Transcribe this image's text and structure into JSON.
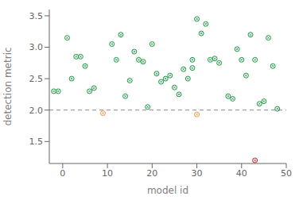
{
  "chart_data": {
    "type": "scatter",
    "title": "",
    "xlabel": "model id",
    "ylabel": "detection metric",
    "xlim": [
      -3,
      50
    ],
    "ylim": [
      1.15,
      3.6
    ],
    "xticks": [
      0,
      10,
      20,
      30,
      40,
      50
    ],
    "yticks": [
      1.5,
      {
        "value": 2.0,
        "label": "2.0"
      },
      2.5,
      {
        "value": 3.0,
        "label": "3.0"
      },
      3.5
    ],
    "grid": false,
    "marker": "circled_x",
    "reference_lines": [
      {
        "y": 2.0,
        "color": "#888888",
        "line_style": "dashed"
      }
    ],
    "series": [
      {
        "color": "#1a9641",
        "x": [
          -2,
          -1,
          1,
          2,
          3,
          4,
          5,
          6,
          7,
          11,
          12,
          13,
          14,
          15,
          16,
          17,
          18,
          19,
          20,
          21,
          22,
          23,
          24,
          25,
          26,
          27,
          28,
          29,
          29,
          30,
          31,
          32,
          33,
          34,
          35,
          37,
          38,
          39,
          40,
          41,
          42,
          43,
          44,
          45,
          46,
          47,
          48
        ],
        "y": [
          2.3,
          2.3,
          3.15,
          2.5,
          2.85,
          2.85,
          2.7,
          2.3,
          2.35,
          3.05,
          2.8,
          3.2,
          2.22,
          2.47,
          2.93,
          2.8,
          2.77,
          2.05,
          3.05,
          2.58,
          2.45,
          2.5,
          2.55,
          2.36,
          2.25,
          2.65,
          2.5,
          2.8,
          2.67,
          3.45,
          3.22,
          3.37,
          2.8,
          2.82,
          2.75,
          2.22,
          2.18,
          2.97,
          2.8,
          2.55,
          3.2,
          2.8,
          2.1,
          2.14,
          3.15,
          2.7,
          2.02
        ]
      },
      {
        "color": "#fd8d3c",
        "x": [
          9,
          30
        ],
        "y": [
          1.95,
          1.93
        ]
      },
      {
        "color": "#d7191c",
        "x": [
          43
        ],
        "y": [
          1.2
        ]
      }
    ]
  }
}
